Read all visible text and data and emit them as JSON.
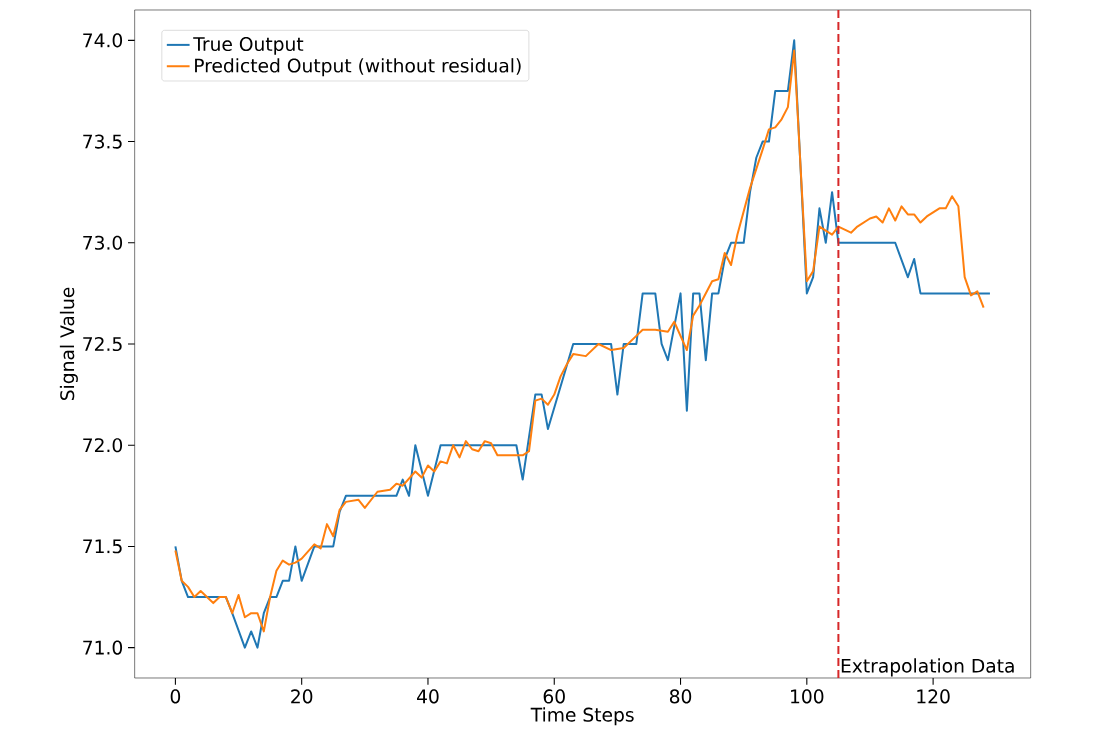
{
  "chart_data": {
    "type": "line",
    "xlabel": "Time Steps",
    "ylabel": "Signal Value",
    "xlim": [
      -6.45,
      135.45
    ],
    "ylim": [
      70.85,
      74.15
    ],
    "xticks": [
      0,
      20,
      40,
      60,
      80,
      100,
      120
    ],
    "yticks": [
      {
        "value": 71.0,
        "label": "71.0"
      },
      {
        "value": 71.5,
        "label": "71.5"
      },
      {
        "value": 72.0,
        "label": "72.0"
      },
      {
        "value": 72.5,
        "label": "72.5"
      },
      {
        "value": 73.0,
        "label": "73.0"
      },
      {
        "value": 73.5,
        "label": "73.5"
      },
      {
        "value": 74.0,
        "label": "74.0"
      }
    ],
    "legend": "top left",
    "grid": false,
    "ref_lines": [
      {
        "axis": "x",
        "value": 105,
        "label": "Extrapolation Data",
        "color": "#d62728",
        "line_style": "dashed"
      }
    ],
    "series": [
      {
        "name": "True Output",
        "color": "#1f77b4",
        "x": [
          0,
          1,
          2,
          8,
          9,
          11,
          12,
          13,
          14,
          15,
          16,
          17,
          18,
          19,
          20,
          22,
          25,
          26,
          27,
          35,
          36,
          37,
          38,
          40,
          42,
          54,
          55,
          57,
          58,
          59,
          63,
          69,
          70,
          71,
          73,
          74,
          76,
          77,
          78,
          80,
          81,
          82,
          83,
          84,
          85,
          86,
          87,
          88,
          90,
          91,
          92,
          93,
          94,
          95,
          97,
          98,
          100,
          101,
          102,
          103,
          104,
          105,
          114,
          116,
          117,
          118,
          129
        ],
        "values": [
          71.5,
          71.33,
          71.25,
          71.25,
          71.17,
          71.0,
          71.08,
          71.0,
          71.17,
          71.25,
          71.25,
          71.33,
          71.33,
          71.5,
          71.33,
          71.5,
          71.5,
          71.67,
          71.75,
          71.75,
          71.83,
          71.75,
          72.0,
          71.75,
          72.0,
          72.0,
          71.83,
          72.25,
          72.25,
          72.08,
          72.5,
          72.5,
          72.25,
          72.5,
          72.5,
          72.75,
          72.75,
          72.5,
          72.42,
          72.75,
          72.17,
          72.75,
          72.75,
          72.42,
          72.75,
          72.75,
          72.92,
          73.0,
          73.0,
          73.25,
          73.42,
          73.5,
          73.5,
          73.75,
          73.75,
          74.0,
          72.75,
          72.83,
          73.17,
          73.0,
          73.25,
          73.0,
          73.0,
          72.83,
          72.92,
          72.75,
          72.75
        ]
      },
      {
        "name": "Predicted Output (without residual)",
        "color": "#ff7f0e",
        "x": [
          0,
          1,
          2,
          3,
          4,
          6,
          7,
          8,
          9,
          10,
          11,
          12,
          13,
          14,
          15,
          16,
          17,
          18,
          19,
          20,
          22,
          23,
          24,
          25,
          26,
          27,
          29,
          30,
          32,
          34,
          35,
          36,
          38,
          39,
          40,
          41,
          42,
          43,
          44,
          45,
          46,
          47,
          48,
          49,
          50,
          51,
          53,
          55,
          56,
          57,
          58,
          59,
          60,
          61,
          62,
          63,
          65,
          67,
          69,
          71,
          73,
          74,
          76,
          78,
          79,
          81,
          82,
          83,
          85,
          86,
          87,
          88,
          89,
          91,
          93,
          94,
          95,
          96,
          97,
          98,
          100,
          101,
          102,
          103,
          104,
          105,
          107,
          108,
          110,
          111,
          112,
          113,
          114,
          115,
          116,
          117,
          118,
          119,
          121,
          122,
          123,
          124,
          125,
          126,
          127,
          128
        ],
        "values": [
          71.48,
          71.33,
          71.3,
          71.25,
          71.28,
          71.22,
          71.25,
          71.25,
          71.17,
          71.26,
          71.15,
          71.17,
          71.17,
          71.08,
          71.25,
          71.38,
          71.43,
          71.41,
          71.42,
          71.44,
          71.51,
          71.49,
          71.61,
          71.55,
          71.68,
          71.72,
          71.73,
          71.69,
          71.77,
          71.78,
          71.81,
          71.8,
          71.87,
          71.84,
          71.9,
          71.87,
          71.92,
          71.91,
          72.0,
          71.94,
          72.02,
          71.98,
          71.97,
          72.02,
          72.01,
          71.95,
          71.95,
          71.95,
          71.97,
          72.22,
          72.23,
          72.2,
          72.25,
          72.34,
          72.4,
          72.45,
          72.44,
          72.5,
          72.47,
          72.48,
          72.54,
          72.57,
          72.57,
          72.56,
          72.61,
          72.47,
          72.64,
          72.69,
          72.81,
          72.82,
          72.95,
          72.89,
          73.04,
          73.27,
          73.46,
          73.56,
          73.57,
          73.61,
          73.67,
          73.95,
          72.81,
          72.86,
          73.08,
          73.06,
          73.04,
          73.08,
          73.05,
          73.08,
          73.12,
          73.13,
          73.1,
          73.17,
          73.11,
          73.18,
          73.14,
          73.14,
          73.1,
          73.13,
          73.17,
          73.17,
          73.23,
          73.18,
          72.83,
          72.74,
          72.76,
          72.68
        ]
      }
    ]
  }
}
